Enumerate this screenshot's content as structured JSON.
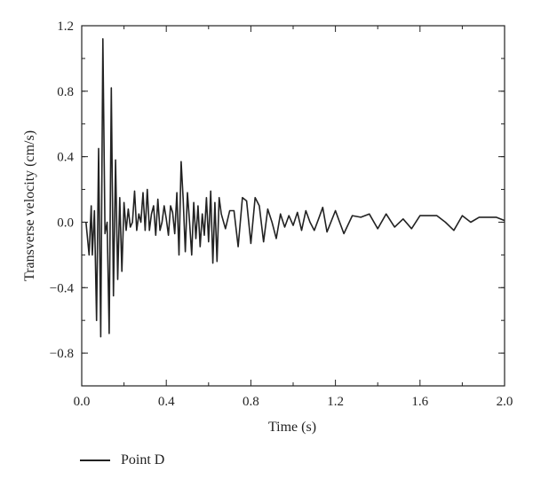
{
  "chart_data": {
    "type": "line",
    "xlabel": "Time (s)",
    "ylabel": "Transverse velocity (cm/s)",
    "xlim": [
      0.0,
      2.0
    ],
    "ylim": [
      -1.0,
      1.2
    ],
    "xticks": [
      "0.0",
      "0.4",
      "0.8",
      "1.2",
      "1.6",
      "2.0"
    ],
    "yticks": [
      "1.2",
      "0.8",
      "0.4",
      "0.0",
      "−0.4",
      "−0.8"
    ],
    "grid": false,
    "legend_position": "bottom-left",
    "series": [
      {
        "name": "Point D",
        "color": "#222222",
        "x": [
          0.02,
          0.035,
          0.045,
          0.05,
          0.06,
          0.07,
          0.08,
          0.09,
          0.1,
          0.11,
          0.12,
          0.13,
          0.14,
          0.15,
          0.16,
          0.17,
          0.18,
          0.19,
          0.2,
          0.21,
          0.22,
          0.23,
          0.24,
          0.25,
          0.26,
          0.27,
          0.28,
          0.29,
          0.3,
          0.31,
          0.32,
          0.33,
          0.34,
          0.35,
          0.36,
          0.37,
          0.38,
          0.39,
          0.4,
          0.41,
          0.42,
          0.43,
          0.44,
          0.45,
          0.46,
          0.47,
          0.48,
          0.49,
          0.5,
          0.51,
          0.52,
          0.53,
          0.54,
          0.55,
          0.56,
          0.57,
          0.58,
          0.59,
          0.6,
          0.61,
          0.62,
          0.63,
          0.64,
          0.65,
          0.66,
          0.68,
          0.7,
          0.72,
          0.74,
          0.76,
          0.78,
          0.8,
          0.82,
          0.84,
          0.86,
          0.88,
          0.9,
          0.92,
          0.94,
          0.96,
          0.98,
          1.0,
          1.02,
          1.04,
          1.06,
          1.08,
          1.1,
          1.12,
          1.14,
          1.16,
          1.2,
          1.24,
          1.28,
          1.32,
          1.36,
          1.4,
          1.44,
          1.48,
          1.52,
          1.56,
          1.6,
          1.64,
          1.68,
          1.72,
          1.76,
          1.8,
          1.84,
          1.88,
          1.92,
          1.96,
          2.0
        ],
        "y": [
          0.0,
          -0.2,
          0.1,
          -0.2,
          0.07,
          -0.6,
          0.45,
          -0.7,
          1.12,
          -0.07,
          0.0,
          -0.68,
          0.82,
          -0.45,
          0.38,
          -0.35,
          0.15,
          -0.3,
          0.12,
          -0.05,
          0.08,
          -0.03,
          0.0,
          0.19,
          -0.05,
          0.05,
          0.0,
          0.18,
          -0.05,
          0.2,
          -0.05,
          0.05,
          0.1,
          -0.08,
          0.14,
          -0.05,
          0.0,
          0.1,
          0.02,
          -0.08,
          0.1,
          0.06,
          -0.07,
          0.18,
          -0.2,
          0.37,
          0.14,
          -0.18,
          0.18,
          0.0,
          -0.2,
          0.12,
          -0.1,
          0.1,
          -0.15,
          0.05,
          -0.08,
          0.15,
          -0.12,
          0.19,
          -0.25,
          0.12,
          -0.24,
          0.15,
          0.05,
          -0.04,
          0.07,
          0.07,
          -0.15,
          0.15,
          0.13,
          -0.13,
          0.15,
          0.1,
          -0.12,
          0.08,
          0.0,
          -0.1,
          0.05,
          -0.03,
          0.04,
          -0.02,
          0.06,
          -0.05,
          0.07,
          0.0,
          -0.05,
          0.02,
          0.09,
          -0.06,
          0.07,
          -0.07,
          0.04,
          0.03,
          0.05,
          -0.04,
          0.05,
          -0.03,
          0.02,
          -0.04,
          0.04,
          0.04,
          0.04,
          0.0,
          -0.05,
          0.04,
          0.0,
          0.03,
          0.03,
          0.03,
          0.01
        ]
      }
    ]
  },
  "legend": {
    "label": "Point D"
  }
}
